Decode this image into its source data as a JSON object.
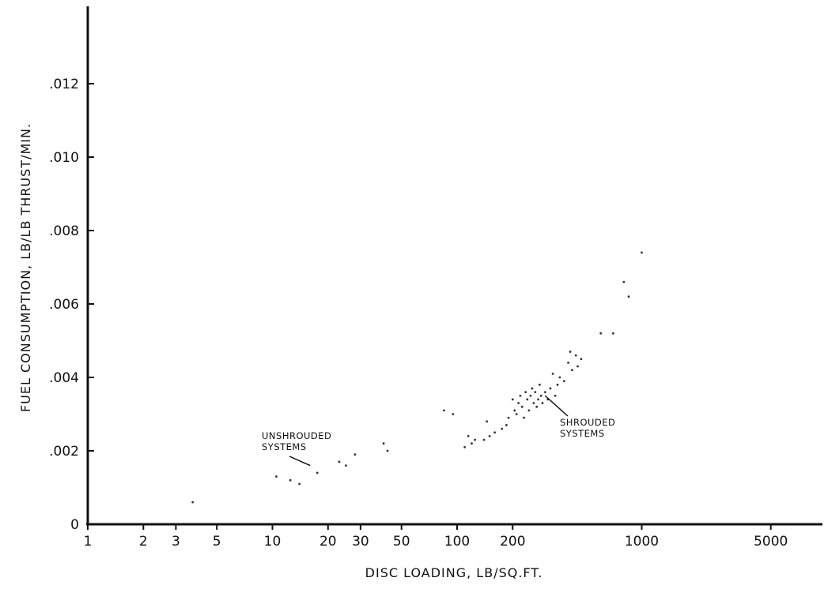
{
  "chart_data": {
    "type": "scatter",
    "xlabel": "DISC LOADING, LB/SQ.FT.",
    "ylabel": "FUEL CONSUMPTION, LB/LB THRUST/MIN.",
    "x_scale": "log",
    "xlim": [
      1,
      10000
    ],
    "ylim": [
      0,
      0.0138
    ],
    "x_ticks": [
      1,
      2,
      3,
      5,
      10,
      20,
      30,
      50,
      100,
      200,
      1000,
      5000
    ],
    "x_tick_labels": [
      "1",
      "2",
      "3",
      "5",
      "10",
      "20",
      "30",
      "50",
      "100",
      "200",
      "1000",
      "5000"
    ],
    "y_ticks": [
      0,
      0.002,
      0.004,
      0.006,
      0.008,
      0.01,
      0.012
    ],
    "y_tick_labels": [
      "0",
      ".002",
      ".004",
      ".006",
      ".008",
      ".010",
      ".012"
    ],
    "grid": false,
    "legend": "none",
    "annotations": [
      {
        "lines": [
          "UNSHROUDED",
          "SYSTEMS"
        ],
        "points_to": [
          16,
          0.0016
        ]
      },
      {
        "lines": [
          "SHROUDED",
          "SYSTEMS"
        ],
        "points_to": [
          300,
          0.0035
        ]
      }
    ],
    "series": [
      {
        "points": [
          [
            3.7,
            0.0006
          ],
          [
            10.5,
            0.0013
          ],
          [
            12.5,
            0.0012
          ],
          [
            14,
            0.0011
          ],
          [
            17.5,
            0.0014
          ],
          [
            23,
            0.0017
          ],
          [
            25,
            0.0016
          ],
          [
            28,
            0.0019
          ],
          [
            40,
            0.0022
          ],
          [
            42,
            0.002
          ],
          [
            85,
            0.0031
          ],
          [
            95,
            0.003
          ],
          [
            110,
            0.0021
          ],
          [
            115,
            0.0024
          ],
          [
            120,
            0.0022
          ],
          [
            125,
            0.0023
          ],
          [
            140,
            0.0023
          ],
          [
            145,
            0.0028
          ],
          [
            150,
            0.0024
          ],
          [
            160,
            0.0025
          ],
          [
            175,
            0.0026
          ],
          [
            185,
            0.0027
          ],
          [
            190,
            0.0029
          ],
          [
            200,
            0.0034
          ],
          [
            205,
            0.0031
          ],
          [
            210,
            0.003
          ],
          [
            215,
            0.0033
          ],
          [
            220,
            0.0035
          ],
          [
            225,
            0.0032
          ],
          [
            230,
            0.0029
          ],
          [
            235,
            0.0036
          ],
          [
            240,
            0.0034
          ],
          [
            245,
            0.0031
          ],
          [
            250,
            0.0035
          ],
          [
            255,
            0.0037
          ],
          [
            260,
            0.0033
          ],
          [
            265,
            0.0036
          ],
          [
            270,
            0.0032
          ],
          [
            275,
            0.0034
          ],
          [
            280,
            0.0038
          ],
          [
            285,
            0.0035
          ],
          [
            290,
            0.0033
          ],
          [
            300,
            0.0036
          ],
          [
            310,
            0.0034
          ],
          [
            320,
            0.0037
          ],
          [
            330,
            0.0041
          ],
          [
            340,
            0.0035
          ],
          [
            350,
            0.0038
          ],
          [
            360,
            0.004
          ],
          [
            380,
            0.0039
          ],
          [
            400,
            0.0044
          ],
          [
            410,
            0.0047
          ],
          [
            420,
            0.0042
          ],
          [
            440,
            0.0046
          ],
          [
            450,
            0.0043
          ],
          [
            470,
            0.0045
          ],
          [
            600,
            0.0052
          ],
          [
            700,
            0.0052
          ],
          [
            800,
            0.0066
          ],
          [
            850,
            0.0062
          ],
          [
            1000,
            0.0074
          ]
        ]
      }
    ]
  }
}
